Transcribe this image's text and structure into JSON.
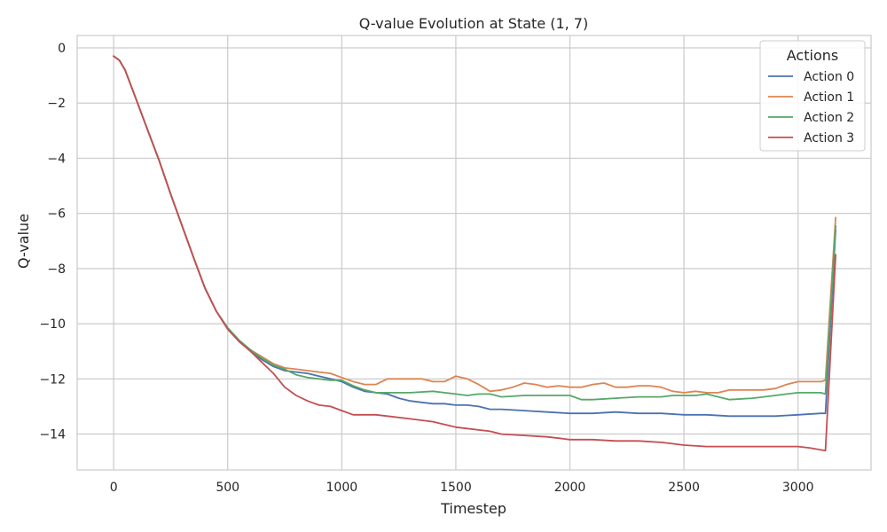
{
  "chart_data": {
    "type": "line",
    "title": "Q-value Evolution at State (1, 7)",
    "xlabel": "Timestep",
    "ylabel": "Q-value",
    "xlim": [
      -160,
      3320
    ],
    "ylim": [
      -15.3,
      0.45
    ],
    "xticks": [
      0,
      500,
      1000,
      1500,
      2000,
      2500,
      3000
    ],
    "xtick_labels": [
      "0",
      "500",
      "1000",
      "1500",
      "2000",
      "2500",
      "3000"
    ],
    "yticks": [
      0,
      -2,
      -4,
      -6,
      -8,
      -10,
      -12,
      -14
    ],
    "ytick_labels": [
      "0",
      "−2",
      "−4",
      "−6",
      "−8",
      "−10",
      "−12",
      "−14"
    ],
    "grid": true,
    "legend": {
      "title": "Actions",
      "position": "top-right"
    },
    "series": [
      {
        "name": "Action 0",
        "color": "#4c72b0",
        "x": [
          0,
          25,
          50,
          100,
          150,
          200,
          250,
          300,
          350,
          400,
          450,
          500,
          550,
          600,
          650,
          700,
          750,
          800,
          850,
          900,
          950,
          1000,
          1050,
          1100,
          1150,
          1200,
          1250,
          1300,
          1350,
          1400,
          1450,
          1500,
          1550,
          1600,
          1650,
          1700,
          1800,
          1900,
          2000,
          2100,
          2200,
          2300,
          2400,
          2500,
          2600,
          2700,
          2800,
          2900,
          3000,
          3100,
          3120,
          3165
        ],
        "y": [
          -0.3,
          -0.45,
          -0.8,
          -1.9,
          -3.0,
          -4.1,
          -5.3,
          -6.45,
          -7.6,
          -8.7,
          -9.55,
          -10.15,
          -10.6,
          -11.0,
          -11.3,
          -11.55,
          -11.7,
          -11.75,
          -11.8,
          -11.9,
          -12.0,
          -12.1,
          -12.3,
          -12.45,
          -12.5,
          -12.55,
          -12.7,
          -12.8,
          -12.85,
          -12.9,
          -12.9,
          -12.95,
          -12.95,
          -13.0,
          -13.1,
          -13.1,
          -13.15,
          -13.2,
          -13.25,
          -13.25,
          -13.2,
          -13.25,
          -13.25,
          -13.3,
          -13.3,
          -13.35,
          -13.35,
          -13.35,
          -13.3,
          -13.25,
          -13.25,
          -6.6
        ]
      },
      {
        "name": "Action 1",
        "color": "#dd8452",
        "x": [
          0,
          25,
          50,
          100,
          150,
          200,
          250,
          300,
          350,
          400,
          450,
          500,
          550,
          600,
          650,
          700,
          750,
          800,
          850,
          900,
          950,
          1000,
          1050,
          1100,
          1150,
          1200,
          1250,
          1300,
          1350,
          1400,
          1450,
          1500,
          1550,
          1600,
          1650,
          1700,
          1750,
          1800,
          1850,
          1900,
          1950,
          2000,
          2050,
          2100,
          2150,
          2200,
          2250,
          2300,
          2350,
          2400,
          2450,
          2500,
          2550,
          2600,
          2650,
          2700,
          2750,
          2800,
          2850,
          2900,
          2950,
          3000,
          3050,
          3100,
          3120,
          3165
        ],
        "y": [
          -0.3,
          -0.45,
          -0.8,
          -1.9,
          -3.0,
          -4.1,
          -5.3,
          -6.45,
          -7.6,
          -8.7,
          -9.55,
          -10.15,
          -10.6,
          -10.95,
          -11.2,
          -11.45,
          -11.6,
          -11.65,
          -11.7,
          -11.75,
          -11.8,
          -11.95,
          -12.1,
          -12.2,
          -12.2,
          -12.0,
          -12.0,
          -12.0,
          -12.0,
          -12.1,
          -12.1,
          -11.9,
          -12.0,
          -12.2,
          -12.45,
          -12.4,
          -12.3,
          -12.15,
          -12.2,
          -12.3,
          -12.25,
          -12.3,
          -12.3,
          -12.2,
          -12.15,
          -12.3,
          -12.3,
          -12.25,
          -12.25,
          -12.3,
          -12.45,
          -12.5,
          -12.45,
          -12.5,
          -12.5,
          -12.4,
          -12.4,
          -12.4,
          -12.4,
          -12.35,
          -12.2,
          -12.1,
          -12.1,
          -12.1,
          -12.05,
          -6.15
        ]
      },
      {
        "name": "Action 2",
        "color": "#55a868",
        "x": [
          0,
          25,
          50,
          100,
          150,
          200,
          250,
          300,
          350,
          400,
          450,
          500,
          550,
          600,
          650,
          700,
          750,
          800,
          850,
          900,
          950,
          1000,
          1050,
          1100,
          1150,
          1200,
          1300,
          1400,
          1450,
          1500,
          1550,
          1600,
          1650,
          1700,
          1800,
          1900,
          2000,
          2050,
          2100,
          2200,
          2300,
          2400,
          2450,
          2500,
          2550,
          2600,
          2650,
          2700,
          2800,
          2850,
          2900,
          2950,
          3000,
          3050,
          3100,
          3120,
          3165
        ],
        "y": [
          -0.3,
          -0.45,
          -0.8,
          -1.9,
          -3.0,
          -4.1,
          -5.3,
          -6.45,
          -7.6,
          -8.7,
          -9.55,
          -10.15,
          -10.6,
          -10.95,
          -11.25,
          -11.5,
          -11.65,
          -11.85,
          -11.95,
          -12.0,
          -12.05,
          -12.05,
          -12.25,
          -12.4,
          -12.5,
          -12.5,
          -12.5,
          -12.45,
          -12.5,
          -12.55,
          -12.6,
          -12.55,
          -12.55,
          -12.65,
          -12.6,
          -12.6,
          -12.6,
          -12.75,
          -12.75,
          -12.7,
          -12.65,
          -12.65,
          -12.6,
          -12.6,
          -12.6,
          -12.55,
          -12.65,
          -12.75,
          -12.7,
          -12.65,
          -12.6,
          -12.55,
          -12.5,
          -12.5,
          -12.5,
          -12.55,
          -6.45
        ]
      },
      {
        "name": "Action 3",
        "color": "#c44e52",
        "x": [
          0,
          25,
          50,
          100,
          150,
          200,
          250,
          300,
          350,
          400,
          450,
          500,
          550,
          600,
          650,
          700,
          750,
          800,
          850,
          900,
          950,
          1000,
          1050,
          1100,
          1150,
          1200,
          1300,
          1400,
          1450,
          1500,
          1550,
          1600,
          1650,
          1700,
          1800,
          1900,
          1950,
          2000,
          2050,
          2100,
          2200,
          2300,
          2400,
          2450,
          2500,
          2600,
          2700,
          2800,
          2900,
          3000,
          3050,
          3120,
          3165
        ],
        "y": [
          -0.3,
          -0.45,
          -0.8,
          -1.9,
          -3.0,
          -4.1,
          -5.3,
          -6.45,
          -7.6,
          -8.7,
          -9.55,
          -10.2,
          -10.65,
          -11.0,
          -11.4,
          -11.8,
          -12.3,
          -12.6,
          -12.8,
          -12.95,
          -13.0,
          -13.15,
          -13.3,
          -13.3,
          -13.3,
          -13.35,
          -13.45,
          -13.55,
          -13.65,
          -13.75,
          -13.8,
          -13.85,
          -13.9,
          -14.0,
          -14.05,
          -14.1,
          -14.15,
          -14.2,
          -14.2,
          -14.2,
          -14.25,
          -14.25,
          -14.3,
          -14.35,
          -14.4,
          -14.45,
          -14.45,
          -14.45,
          -14.45,
          -14.45,
          -14.5,
          -14.6,
          -7.5
        ]
      }
    ]
  }
}
